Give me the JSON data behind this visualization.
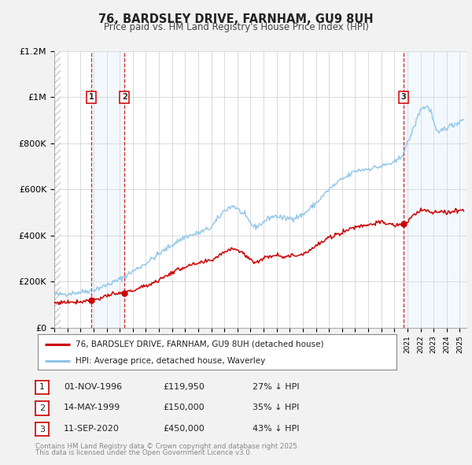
{
  "title": "76, BARDSLEY DRIVE, FARNHAM, GU9 8UH",
  "subtitle": "Price paid vs. HM Land Registry's House Price Index (HPI)",
  "ylim": [
    0,
    1200000
  ],
  "xlim_start": 1994.0,
  "xlim_end": 2025.5,
  "bg_color": "#f2f2f2",
  "plot_bg_color": "#ffffff",
  "grid_color": "#cccccc",
  "hpi_line_color": "#8dc4e8",
  "price_line_color": "#cc0000",
  "sale_dot_color": "#cc0000",
  "vline_color": "#cc0000",
  "span_color": "#d0e4f5",
  "hatch_color": "#cccccc",
  "legend_line1": "76, BARDSLEY DRIVE, FARNHAM, GU9 8UH (detached house)",
  "legend_line2": "HPI: Average price, detached house, Waverley",
  "transactions": [
    {
      "id": 1,
      "date": 1996.84,
      "price": 119950,
      "label": "1",
      "pct": "27%",
      "date_str": "01-NOV-1996"
    },
    {
      "id": 2,
      "date": 1999.37,
      "price": 150000,
      "label": "2",
      "pct": "35%",
      "date_str": "14-MAY-1999"
    },
    {
      "id": 3,
      "date": 2020.7,
      "price": 450000,
      "label": "3",
      "pct": "43%",
      "date_str": "11-SEP-2020"
    }
  ],
  "footer_line1": "Contains HM Land Registry data © Crown copyright and database right 2025.",
  "footer_line2": "This data is licensed under the Open Government Licence v3.0.",
  "yticks": [
    0,
    200000,
    400000,
    600000,
    800000,
    1000000,
    1200000
  ],
  "ytick_labels": [
    "£0",
    "£200K",
    "£400K",
    "£600K",
    "£800K",
    "£1M",
    "£1.2M"
  ],
  "table_rows": [
    [
      "1",
      "01-NOV-1996",
      "£119,950",
      "27% ↓ HPI"
    ],
    [
      "2",
      "14-MAY-1999",
      "£150,000",
      "35% ↓ HPI"
    ],
    [
      "3",
      "11-SEP-2020",
      "£450,000",
      "43% ↓ HPI"
    ]
  ]
}
